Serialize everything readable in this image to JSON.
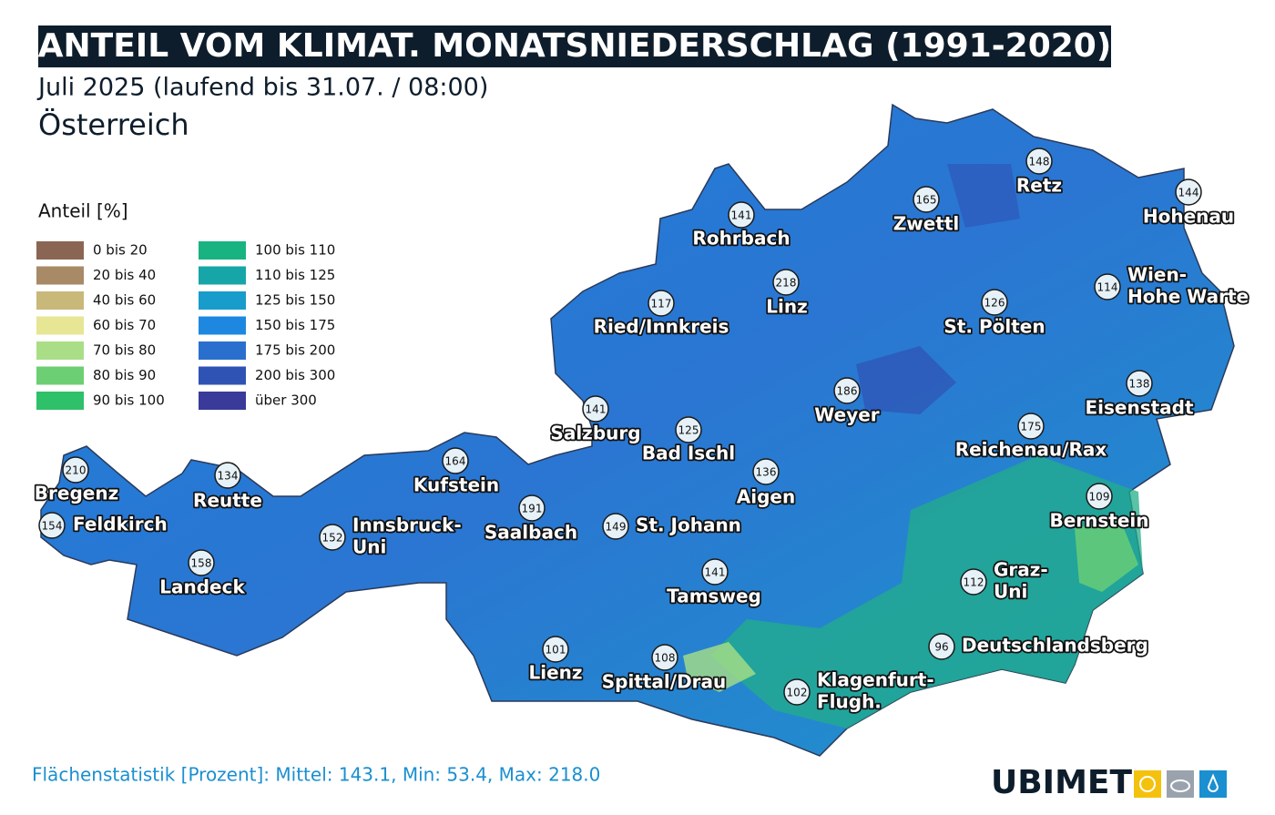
{
  "header": {
    "title": "ANTEIL VOM KLIMAT. MONATSNIEDERSCHLAG (1991-2020)",
    "subtitle": "Juli 2025 (laufend bis 31.07. / 08:00)",
    "region": "Österreich"
  },
  "legend": {
    "title": "Anteil [%]",
    "items": [
      {
        "label": "0 bis 20",
        "color": "#8b6553"
      },
      {
        "label": "20 bis 40",
        "color": "#a88a66"
      },
      {
        "label": "40 bis 60",
        "color": "#c8b87a"
      },
      {
        "label": "60 bis 70",
        "color": "#e6e695"
      },
      {
        "label": "70 bis 80",
        "color": "#a9de86"
      },
      {
        "label": "80 bis 90",
        "color": "#6ccf74"
      },
      {
        "label": "90 bis 100",
        "color": "#2fc06a"
      },
      {
        "label": "100 bis 110",
        "color": "#19b381"
      },
      {
        "label": "110 bis 125",
        "color": "#16a6a8"
      },
      {
        "label": "125 bis 150",
        "color": "#179ccc"
      },
      {
        "label": "150 bis 175",
        "color": "#1e88e0"
      },
      {
        "label": "175 bis 200",
        "color": "#2a6fcd"
      },
      {
        "label": "200 bis 300",
        "color": "#2f52b5"
      },
      {
        "label": "über 300",
        "color": "#3a3a9a"
      }
    ]
  },
  "stations": [
    {
      "name": [
        "Bregenz"
      ],
      "value": 210
    },
    {
      "name": [
        "Feldkirch"
      ],
      "value": 154
    },
    {
      "name": [
        "Reutte"
      ],
      "value": 134
    },
    {
      "name": [
        "Landeck"
      ],
      "value": 158
    },
    {
      "name": [
        "Innsbruck-",
        "Uni"
      ],
      "value": 152
    },
    {
      "name": [
        "Kufstein"
      ],
      "value": 164
    },
    {
      "name": [
        "Saalbach"
      ],
      "value": 191
    },
    {
      "name": [
        "Salzburg"
      ],
      "value": 141
    },
    {
      "name": [
        "Bad Ischl"
      ],
      "value": 125
    },
    {
      "name": [
        "St. Johann"
      ],
      "value": 149
    },
    {
      "name": [
        "Tamsweg"
      ],
      "value": 141
    },
    {
      "name": [
        "Aigen"
      ],
      "value": 136
    },
    {
      "name": [
        "Weyer"
      ],
      "value": 186
    },
    {
      "name": [
        "Linz"
      ],
      "value": 218
    },
    {
      "name": [
        "Rohrbach"
      ],
      "value": 141
    },
    {
      "name": [
        "Ried/Innkreis"
      ],
      "value": 117
    },
    {
      "name": [
        "Zwettl"
      ],
      "value": 165
    },
    {
      "name": [
        "Retz"
      ],
      "value": 148
    },
    {
      "name": [
        "Hohenau"
      ],
      "value": 144
    },
    {
      "name": [
        "Wien-",
        "Hohe Warte"
      ],
      "value": 114
    },
    {
      "name": [
        "St. Pölten"
      ],
      "value": 126
    },
    {
      "name": [
        "Eisenstadt"
      ],
      "value": 138
    },
    {
      "name": [
        "Reichenau/Rax"
      ],
      "value": 175
    },
    {
      "name": [
        "Bernstein"
      ],
      "value": 109
    },
    {
      "name": [
        "Graz-",
        "Uni"
      ],
      "value": 112
    },
    {
      "name": [
        "Deutschlandsberg"
      ],
      "value": 96
    },
    {
      "name": [
        "Klagenfurt-",
        "Flugh."
      ],
      "value": 102
    },
    {
      "name": [
        "Spittal/Drau"
      ],
      "value": 108
    },
    {
      "name": [
        "Lienz"
      ],
      "value": 101
    }
  ],
  "footer": {
    "stats": "Flächenstatistik [Prozent]: Mittel: 143.1, Min: 53.4, Max: 218.0",
    "brand": "UBIMET"
  }
}
